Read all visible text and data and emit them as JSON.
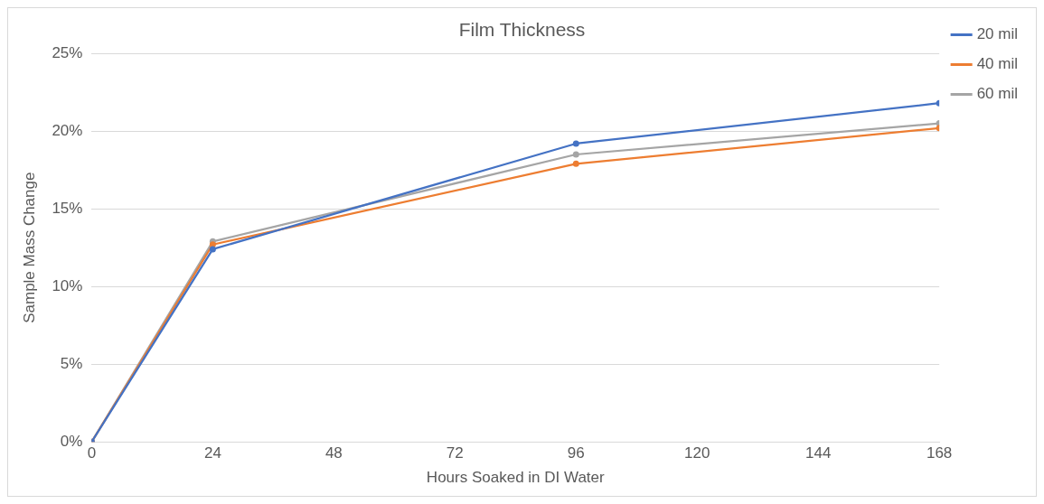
{
  "chart_data": {
    "type": "line",
    "title": "Film Thickness",
    "xlabel": "Hours Soaked in DI Water",
    "ylabel": "Sample Mass Change",
    "x": [
      0,
      24,
      96,
      168
    ],
    "series": [
      {
        "name": "20 mil",
        "color": "#4472c4",
        "values": [
          0,
          12.4,
          19.2,
          21.8
        ]
      },
      {
        "name": "40 mil",
        "color": "#ed7d31",
        "values": [
          0,
          12.7,
          17.9,
          20.2
        ]
      },
      {
        "name": "60 mil",
        "color": "#a5a5a5",
        "values": [
          0,
          12.9,
          18.5,
          20.5
        ]
      }
    ],
    "xlim": [
      0,
      168
    ],
    "xticks": [
      0,
      24,
      48,
      72,
      96,
      120,
      144,
      168
    ],
    "ylim": [
      0,
      25
    ],
    "yticks": [
      {
        "value": 0,
        "label": "0%"
      },
      {
        "value": 5,
        "label": "5%"
      },
      {
        "value": 10,
        "label": "10%"
      },
      {
        "value": 15,
        "label": "15%"
      },
      {
        "value": 20,
        "label": "20%"
      },
      {
        "value": 25,
        "label": "25%"
      }
    ],
    "grid": "y",
    "legend": "right",
    "marker": "circle",
    "line_style": "solid"
  }
}
